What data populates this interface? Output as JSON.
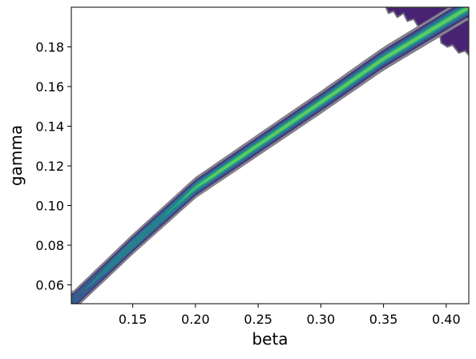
{
  "chart_data": {
    "type": "contour",
    "xlabel": "beta",
    "ylabel": "gamma",
    "xlim": [
      0.101,
      0.418
    ],
    "ylim": [
      0.0505,
      0.2
    ],
    "xticks": [
      0.15,
      0.2,
      0.25,
      0.3,
      0.35,
      0.4
    ],
    "xtick_labels": [
      "0.15",
      "0.20",
      "0.25",
      "0.30",
      "0.35",
      "0.40"
    ],
    "yticks": [
      0.06,
      0.08,
      0.1,
      0.12,
      0.14,
      0.16,
      0.18
    ],
    "ytick_labels": [
      "0.06",
      "0.08",
      "0.10",
      "0.12",
      "0.14",
      "0.16",
      "0.18"
    ],
    "ridge": {
      "description_points_beta_gamma": [
        [
          0.101,
          0.051
        ],
        [
          0.15,
          0.0805
        ],
        [
          0.2,
          0.109
        ],
        [
          0.25,
          0.1305
        ],
        [
          0.3,
          0.152
        ],
        [
          0.35,
          0.174
        ],
        [
          0.418,
          0.2
        ]
      ]
    },
    "levels": [
      {
        "name": "outer",
        "color": "#8a8a90",
        "half_width": 0.0046
      },
      {
        "name": "level-1",
        "color": "#46337e",
        "half_width": 0.0037
      },
      {
        "name": "level-2",
        "color": "#365c8d",
        "half_width": 0.0029
      },
      {
        "name": "level-3",
        "color": "#277f8e",
        "half_width": 0.0021
      },
      {
        "name": "level-4",
        "color": "#1fa187",
        "half_width": 0.0014
      },
      {
        "name": "level-5",
        "color": "#5ec962",
        "half_width": 0.0008
      }
    ],
    "colors": {
      "dark_region": "#482374",
      "dark_region_edge": "#6b6b78"
    }
  }
}
